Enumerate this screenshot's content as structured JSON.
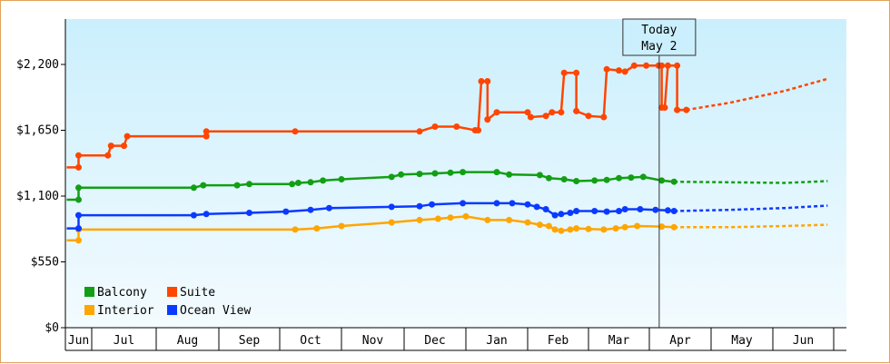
{
  "chart_data": {
    "type": "line",
    "x_unit": "month",
    "months": [
      "Jun",
      "Jul",
      "Aug",
      "Sep",
      "Oct",
      "Nov",
      "Dec",
      "Jan",
      "Feb",
      "Mar",
      "Apr",
      "May",
      "Jun"
    ],
    "y_ticks": [
      "$0",
      "$550",
      "$1,100",
      "$1,650",
      "$2,200"
    ],
    "ylim": [
      0,
      2200
    ],
    "grid": false,
    "legend_position": "bottom-left",
    "colors": {
      "Balcony": "#129f14",
      "Suite": "#ff4500",
      "Interior": "#ffa500",
      "Ocean View": "#0a3aff"
    },
    "today": {
      "line1": "Today",
      "line2": "May 2",
      "x": 10.16
    },
    "series": [
      {
        "name": "Balcony",
        "points": [
          [
            0.05,
            1070
          ],
          [
            0.5,
            1070
          ],
          [
            0.5,
            1170
          ],
          [
            2.6,
            1170
          ],
          [
            2.75,
            1190
          ],
          [
            3.3,
            1190
          ],
          [
            3.5,
            1200
          ],
          [
            4.2,
            1200
          ],
          [
            4.3,
            1210
          ],
          [
            4.5,
            1215
          ],
          [
            4.7,
            1230
          ],
          [
            5,
            1240
          ],
          [
            5.8,
            1260
          ],
          [
            5.95,
            1280
          ],
          [
            6.25,
            1285
          ],
          [
            6.5,
            1290
          ],
          [
            6.75,
            1295
          ],
          [
            6.95,
            1300
          ],
          [
            7.5,
            1300
          ],
          [
            7.7,
            1280
          ],
          [
            8.2,
            1275
          ],
          [
            8.35,
            1250
          ],
          [
            8.6,
            1240
          ],
          [
            8.8,
            1225
          ],
          [
            9.1,
            1230
          ],
          [
            9.3,
            1235
          ],
          [
            9.5,
            1250
          ],
          [
            9.7,
            1255
          ],
          [
            9.9,
            1260
          ],
          [
            10.2,
            1230
          ],
          [
            10.4,
            1220
          ]
        ],
        "projection": [
          [
            10.4,
            1220
          ],
          [
            11.25,
            1215
          ],
          [
            12.2,
            1210
          ],
          [
            12.9,
            1225
          ]
        ]
      },
      {
        "name": "Suite",
        "points": [
          [
            0.05,
            1340
          ],
          [
            0.5,
            1340
          ],
          [
            0.5,
            1440
          ],
          [
            1.25,
            1440
          ],
          [
            1.3,
            1520
          ],
          [
            1.5,
            1520
          ],
          [
            1.55,
            1600
          ],
          [
            2.8,
            1600
          ],
          [
            2.8,
            1640
          ],
          [
            4.25,
            1640
          ],
          [
            6.25,
            1640
          ],
          [
            6.5,
            1680
          ],
          [
            6.85,
            1680
          ],
          [
            7.15,
            1650
          ],
          [
            7.2,
            1650
          ],
          [
            7.25,
            2060
          ],
          [
            7.35,
            2060
          ],
          [
            7.35,
            1740
          ],
          [
            7.5,
            1800
          ],
          [
            8,
            1800
          ],
          [
            8.05,
            1760
          ],
          [
            8.3,
            1770
          ],
          [
            8.4,
            1800
          ],
          [
            8.55,
            1800
          ],
          [
            8.6,
            2130
          ],
          [
            8.8,
            2130
          ],
          [
            8.8,
            1810
          ],
          [
            9,
            1770
          ],
          [
            9.25,
            1760
          ],
          [
            9.3,
            2160
          ],
          [
            9.5,
            2150
          ],
          [
            9.6,
            2140
          ],
          [
            9.75,
            2190
          ],
          [
            9.95,
            2190
          ],
          [
            10.15,
            2190
          ],
          [
            10.2,
            2190
          ],
          [
            10.2,
            1840
          ],
          [
            10.25,
            1840
          ],
          [
            10.3,
            2190
          ],
          [
            10.45,
            2190
          ],
          [
            10.45,
            1820
          ],
          [
            10.6,
            1820
          ]
        ],
        "projection": [
          [
            10.6,
            1820
          ],
          [
            11.3,
            1880
          ],
          [
            12.2,
            1980
          ],
          [
            12.9,
            2080
          ]
        ]
      },
      {
        "name": "Interior",
        "points": [
          [
            0.05,
            730
          ],
          [
            0.5,
            730
          ],
          [
            0.5,
            820
          ],
          [
            4.25,
            820
          ],
          [
            4.6,
            830
          ],
          [
            5,
            850
          ],
          [
            5.8,
            880
          ],
          [
            6.25,
            900
          ],
          [
            6.55,
            910
          ],
          [
            6.75,
            920
          ],
          [
            7,
            930
          ],
          [
            7.35,
            900
          ],
          [
            7.7,
            900
          ],
          [
            8,
            880
          ],
          [
            8.2,
            860
          ],
          [
            8.35,
            850
          ],
          [
            8.45,
            820
          ],
          [
            8.55,
            810
          ],
          [
            8.7,
            820
          ],
          [
            8.8,
            830
          ],
          [
            9,
            825
          ],
          [
            9.25,
            820
          ],
          [
            9.45,
            830
          ],
          [
            9.6,
            840
          ],
          [
            9.8,
            850
          ],
          [
            10.2,
            845
          ],
          [
            10.4,
            840
          ]
        ],
        "projection": [
          [
            10.4,
            840
          ],
          [
            11.3,
            840
          ],
          [
            12.2,
            850
          ],
          [
            12.9,
            860
          ]
        ]
      },
      {
        "name": "Ocean View",
        "points": [
          [
            0.05,
            830
          ],
          [
            0.5,
            830
          ],
          [
            0.5,
            940
          ],
          [
            2.6,
            940
          ],
          [
            2.8,
            950
          ],
          [
            3.5,
            960
          ],
          [
            4.1,
            970
          ],
          [
            4.5,
            985
          ],
          [
            4.8,
            1000
          ],
          [
            5.8,
            1010
          ],
          [
            6.25,
            1015
          ],
          [
            6.45,
            1030
          ],
          [
            6.95,
            1040
          ],
          [
            7.5,
            1040
          ],
          [
            7.75,
            1040
          ],
          [
            8,
            1030
          ],
          [
            8.15,
            1010
          ],
          [
            8.3,
            990
          ],
          [
            8.45,
            940
          ],
          [
            8.55,
            950
          ],
          [
            8.7,
            960
          ],
          [
            8.8,
            975
          ],
          [
            9.1,
            975
          ],
          [
            9.3,
            970
          ],
          [
            9.5,
            975
          ],
          [
            9.6,
            990
          ],
          [
            9.85,
            990
          ],
          [
            10.1,
            985
          ],
          [
            10.3,
            980
          ],
          [
            10.4,
            975
          ]
        ],
        "projection": [
          [
            10.4,
            975
          ],
          [
            11.3,
            985
          ],
          [
            12.2,
            1000
          ],
          [
            12.9,
            1020
          ]
        ]
      }
    ]
  },
  "legend": {
    "items": [
      {
        "label": "Balcony",
        "color": "#129f14"
      },
      {
        "label": "Suite",
        "color": "#ff4500"
      },
      {
        "label": "Interior",
        "color": "#ffa500"
      },
      {
        "label": "Ocean View",
        "color": "#0a3aff"
      }
    ]
  }
}
